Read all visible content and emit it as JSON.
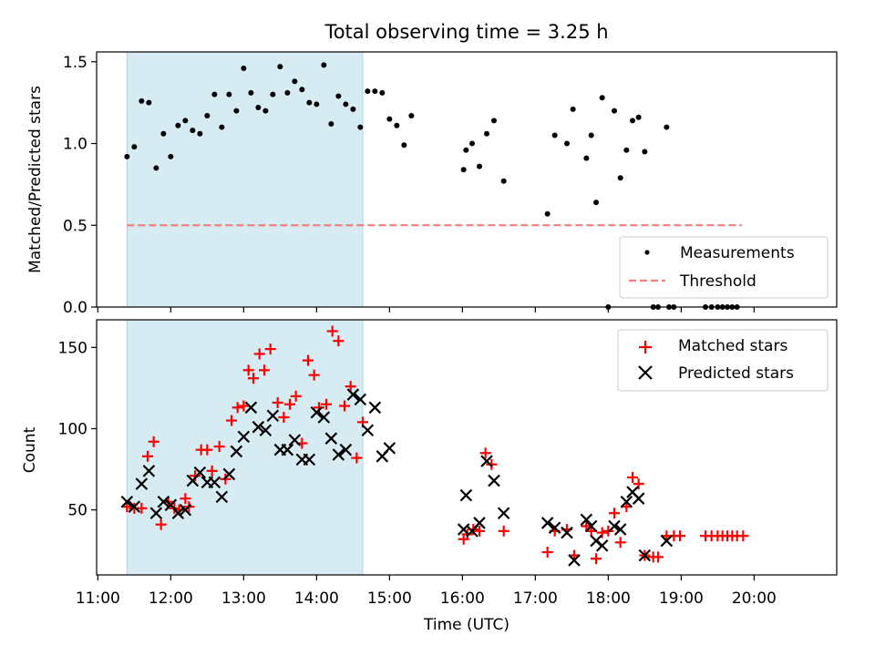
{
  "chart_data": [
    {
      "type": "scatter",
      "title": "Total observing time = 3.25 h",
      "xlabel": "",
      "ylabel": "Matched/Predicted stars",
      "ylim": [
        0,
        1.56
      ],
      "yticks": [
        "0.0",
        "0.5",
        "1.0",
        "1.5"
      ],
      "ytick_values": [
        0,
        0.5,
        1.0,
        1.5
      ],
      "legend": {
        "placement": "lower-right",
        "entries": [
          "Measurements",
          "Threshold"
        ]
      },
      "shaded_span": {
        "start": "11:24",
        "end": "14:38",
        "color": "#add8e6"
      },
      "threshold": {
        "name": "Threshold",
        "value": 0.5,
        "from": "11:24",
        "to": "19:50",
        "color": "#f08080"
      },
      "series": [
        {
          "name": "Measurements",
          "color": "#000000",
          "points": [
            [
              "11:24",
              0.92
            ],
            [
              "11:30",
              0.98
            ],
            [
              "11:36",
              1.26
            ],
            [
              "11:42",
              1.25
            ],
            [
              "11:48",
              0.85
            ],
            [
              "11:54",
              1.06
            ],
            [
              "12:00",
              0.92
            ],
            [
              "12:06",
              1.11
            ],
            [
              "12:12",
              1.14
            ],
            [
              "12:18",
              1.08
            ],
            [
              "12:24",
              1.06
            ],
            [
              "12:30",
              1.17
            ],
            [
              "12:36",
              1.3
            ],
            [
              "12:42",
              1.1
            ],
            [
              "12:48",
              1.3
            ],
            [
              "12:54",
              1.2
            ],
            [
              "13:00",
              1.46
            ],
            [
              "13:06",
              1.31
            ],
            [
              "13:12",
              1.22
            ],
            [
              "13:18",
              1.2
            ],
            [
              "13:24",
              1.3
            ],
            [
              "13:30",
              1.47
            ],
            [
              "13:36",
              1.31
            ],
            [
              "13:42",
              1.38
            ],
            [
              "13:48",
              1.33
            ],
            [
              "13:54",
              1.25
            ],
            [
              "14:00",
              1.24
            ],
            [
              "14:06",
              1.48
            ],
            [
              "14:12",
              1.12
            ],
            [
              "14:18",
              1.29
            ],
            [
              "14:24",
              1.24
            ],
            [
              "14:30",
              1.21
            ],
            [
              "14:36",
              1.1
            ],
            [
              "14:42",
              1.32
            ],
            [
              "14:48",
              1.32
            ],
            [
              "14:54",
              1.31
            ],
            [
              "15:00",
              1.15
            ],
            [
              "15:06",
              1.11
            ],
            [
              "15:12",
              0.99
            ],
            [
              "15:18",
              1.17
            ],
            [
              "16:01",
              0.84
            ],
            [
              "16:03",
              0.96
            ],
            [
              "16:08",
              1.0
            ],
            [
              "16:14",
              0.86
            ],
            [
              "16:20",
              1.06
            ],
            [
              "16:26",
              1.14
            ],
            [
              "16:34",
              0.77
            ],
            [
              "17:10",
              0.57
            ],
            [
              "17:16",
              1.05
            ],
            [
              "17:26",
              1.0
            ],
            [
              "17:31",
              1.21
            ],
            [
              "17:42",
              0.91
            ],
            [
              "17:46",
              1.05
            ],
            [
              "17:50",
              0.64
            ],
            [
              "17:55",
              1.28
            ],
            [
              "18:05",
              1.2
            ],
            [
              "18:10",
              0.79
            ],
            [
              "18:15",
              0.96
            ],
            [
              "18:20",
              1.14
            ],
            [
              "18:25",
              1.16
            ],
            [
              "18:30",
              0.95
            ],
            [
              "18:48",
              1.1
            ],
            [
              "18:00",
              0.0
            ],
            [
              "18:37",
              0.0
            ],
            [
              "18:41",
              0.0
            ],
            [
              "18:50",
              0.0
            ],
            [
              "18:54",
              0.0
            ],
            [
              "19:20",
              0.0
            ],
            [
              "19:25",
              0.0
            ],
            [
              "19:30",
              0.0
            ],
            [
              "19:34",
              0.0
            ],
            [
              "19:38",
              0.0
            ],
            [
              "19:42",
              0.0
            ],
            [
              "19:46",
              0.0
            ]
          ]
        }
      ]
    },
    {
      "type": "scatter",
      "xlabel": "Time (UTC)",
      "ylabel": "Count",
      "ylim": [
        10,
        167
      ],
      "yticks": [
        "50",
        "100",
        "150"
      ],
      "ytick_values": [
        50,
        100,
        150
      ],
      "xlim": [
        "10:59",
        "21:08"
      ],
      "xticks": [
        "11:00",
        "12:00",
        "13:00",
        "14:00",
        "15:00",
        "16:00",
        "17:00",
        "18:00",
        "19:00",
        "20:00"
      ],
      "legend": {
        "placement": "upper-right",
        "entries": [
          "Matched stars",
          "Predicted stars"
        ]
      },
      "shaded_span": {
        "start": "11:24",
        "end": "14:38",
        "color": "#add8e6"
      },
      "series": [
        {
          "name": "Matched stars",
          "color": "#ff0000",
          "marker": "+",
          "points": [
            [
              "11:24",
              52
            ],
            [
              "11:30",
              51
            ],
            [
              "11:36",
              51
            ],
            [
              "11:41",
              83
            ],
            [
              "11:46",
              92
            ],
            [
              "11:52",
              41
            ],
            [
              "11:58",
              55
            ],
            [
              "12:03",
              51
            ],
            [
              "12:07",
              50
            ],
            [
              "12:12",
              57
            ],
            [
              "12:15",
              52
            ],
            [
              "12:20",
              71
            ],
            [
              "12:25",
              87
            ],
            [
              "12:30",
              87
            ],
            [
              "12:34",
              74
            ],
            [
              "12:40",
              89
            ],
            [
              "12:45",
              69
            ],
            [
              "12:50",
              105
            ],
            [
              "12:55",
              113
            ],
            [
              "13:00",
              114
            ],
            [
              "13:04",
              136
            ],
            [
              "13:08",
              131
            ],
            [
              "13:13",
              146
            ],
            [
              "13:17",
              136
            ],
            [
              "13:22",
              149
            ],
            [
              "13:28",
              116
            ],
            [
              "13:33",
              107
            ],
            [
              "13:38",
              115
            ],
            [
              "13:43",
              120
            ],
            [
              "13:48",
              91
            ],
            [
              "13:53",
              142
            ],
            [
              "13:58",
              133
            ],
            [
              "14:02",
              113
            ],
            [
              "14:08",
              115
            ],
            [
              "14:13",
              160
            ],
            [
              "14:18",
              154
            ],
            [
              "14:23",
              114
            ],
            [
              "14:28",
              126
            ],
            [
              "14:33",
              82
            ],
            [
              "14:38",
              104
            ],
            [
              "16:01",
              32
            ],
            [
              "16:04",
              35
            ],
            [
              "16:09",
              38
            ],
            [
              "16:14",
              37
            ],
            [
              "16:19",
              85
            ],
            [
              "16:24",
              78
            ],
            [
              "16:34",
              37
            ],
            [
              "17:10",
              24
            ],
            [
              "17:16",
              37
            ],
            [
              "17:26",
              38
            ],
            [
              "17:32",
              22
            ],
            [
              "17:42",
              40
            ],
            [
              "17:46",
              37
            ],
            [
              "17:50",
              20
            ],
            [
              "17:55",
              36
            ],
            [
              "18:00",
              37
            ],
            [
              "18:05",
              48
            ],
            [
              "18:10",
              30
            ],
            [
              "18:15",
              52
            ],
            [
              "18:20",
              70
            ],
            [
              "18:25",
              66
            ],
            [
              "18:30",
              22
            ],
            [
              "18:37",
              21
            ],
            [
              "18:41",
              21
            ],
            [
              "18:48",
              34
            ],
            [
              "18:54",
              34
            ],
            [
              "18:59",
              34
            ],
            [
              "19:20",
              34
            ],
            [
              "19:25",
              34
            ],
            [
              "19:30",
              34
            ],
            [
              "19:34",
              34
            ],
            [
              "19:38",
              34
            ],
            [
              "19:42",
              34
            ],
            [
              "19:46",
              34
            ],
            [
              "19:51",
              34
            ]
          ]
        },
        {
          "name": "Predicted stars",
          "color": "#000000",
          "marker": "x",
          "points": [
            [
              "11:24",
              55
            ],
            [
              "11:30",
              52
            ],
            [
              "11:36",
              66
            ],
            [
              "11:42",
              74
            ],
            [
              "11:48",
              48
            ],
            [
              "11:54",
              55
            ],
            [
              "12:00",
              53
            ],
            [
              "12:06",
              48
            ],
            [
              "12:12",
              50
            ],
            [
              "12:18",
              68
            ],
            [
              "12:24",
              73
            ],
            [
              "12:30",
              67
            ],
            [
              "12:36",
              67
            ],
            [
              "12:42",
              58
            ],
            [
              "12:48",
              72
            ],
            [
              "12:54",
              86
            ],
            [
              "13:00",
              95
            ],
            [
              "13:06",
              113
            ],
            [
              "13:12",
              101
            ],
            [
              "13:18",
              99
            ],
            [
              "13:24",
              108
            ],
            [
              "13:30",
              87
            ],
            [
              "13:36",
              87
            ],
            [
              "13:42",
              93
            ],
            [
              "13:48",
              81
            ],
            [
              "13:54",
              81
            ],
            [
              "14:00",
              110
            ],
            [
              "14:06",
              107
            ],
            [
              "14:12",
              94
            ],
            [
              "14:18",
              84
            ],
            [
              "14:24",
              87
            ],
            [
              "14:30",
              121
            ],
            [
              "14:36",
              118
            ],
            [
              "14:42",
              99
            ],
            [
              "14:48",
              113
            ],
            [
              "14:54",
              83
            ],
            [
              "15:00",
              88
            ],
            [
              "16:01",
              38
            ],
            [
              "16:03",
              59
            ],
            [
              "16:08",
              37
            ],
            [
              "16:14",
              42
            ],
            [
              "16:20",
              80
            ],
            [
              "16:26",
              68
            ],
            [
              "16:34",
              48
            ],
            [
              "17:10",
              42
            ],
            [
              "17:16",
              39
            ],
            [
              "17:26",
              36
            ],
            [
              "17:32",
              19
            ],
            [
              "17:42",
              44
            ],
            [
              "17:46",
              40
            ],
            [
              "17:50",
              31
            ],
            [
              "17:55",
              28
            ],
            [
              "18:05",
              40
            ],
            [
              "18:10",
              38
            ],
            [
              "18:15",
              55
            ],
            [
              "18:20",
              61
            ],
            [
              "18:25",
              57
            ],
            [
              "18:30",
              22
            ],
            [
              "18:48",
              31
            ]
          ]
        }
      ]
    }
  ]
}
